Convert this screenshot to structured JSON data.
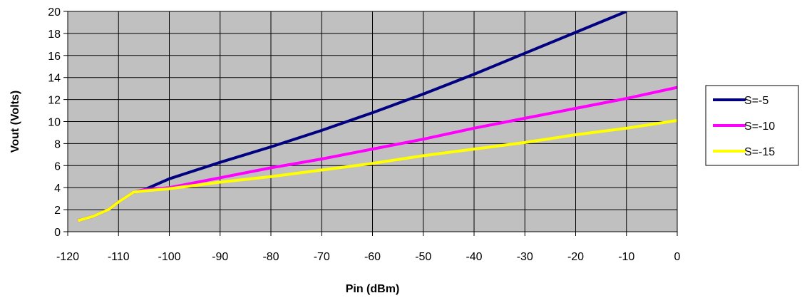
{
  "chart_data": {
    "type": "line",
    "title": "",
    "xlabel": "Pin (dBm)",
    "ylabel": "Vout (Volts)",
    "xlim": [
      -120,
      0
    ],
    "ylim": [
      0,
      20
    ],
    "xticks": [
      -120,
      -110,
      -100,
      -90,
      -80,
      -70,
      -60,
      -50,
      -40,
      -30,
      -20,
      -10,
      0
    ],
    "yticks": [
      0,
      2,
      4,
      6,
      8,
      10,
      12,
      14,
      16,
      18,
      20
    ],
    "grid": true,
    "plot_background": "#c0c0c0",
    "legend_position": "right",
    "series": [
      {
        "name": "S=-5",
        "color": "#000080",
        "points": [
          [
            -118,
            1.0
          ],
          [
            -115,
            1.4
          ],
          [
            -112,
            2.0
          ],
          [
            -110,
            2.7
          ],
          [
            -107,
            3.6
          ],
          [
            -105,
            3.8
          ],
          [
            -100,
            4.8
          ],
          [
            -90,
            6.3
          ],
          [
            -80,
            7.7
          ],
          [
            -70,
            9.2
          ],
          [
            -60,
            10.8
          ],
          [
            -50,
            12.5
          ],
          [
            -40,
            14.3
          ],
          [
            -30,
            16.2
          ],
          [
            -20,
            18.1
          ],
          [
            -10,
            20.0
          ]
        ]
      },
      {
        "name": "S=-10",
        "color": "#ff00ff",
        "points": [
          [
            -118,
            1.0
          ],
          [
            -115,
            1.4
          ],
          [
            -112,
            2.0
          ],
          [
            -110,
            2.7
          ],
          [
            -107,
            3.6
          ],
          [
            -105,
            3.8
          ],
          [
            -100,
            4.0
          ],
          [
            -90,
            4.9
          ],
          [
            -80,
            5.8
          ],
          [
            -70,
            6.6
          ],
          [
            -60,
            7.5
          ],
          [
            -50,
            8.4
          ],
          [
            -40,
            9.4
          ],
          [
            -30,
            10.3
          ],
          [
            -20,
            11.2
          ],
          [
            -10,
            12.1
          ],
          [
            0,
            13.1
          ]
        ]
      },
      {
        "name": "S=-15",
        "color": "#ffff00",
        "points": [
          [
            -118,
            1.0
          ],
          [
            -115,
            1.4
          ],
          [
            -112,
            2.0
          ],
          [
            -110,
            2.7
          ],
          [
            -107,
            3.6
          ],
          [
            -105,
            3.7
          ],
          [
            -100,
            3.9
          ],
          [
            -90,
            4.5
          ],
          [
            -80,
            5.0
          ],
          [
            -70,
            5.6
          ],
          [
            -60,
            6.2
          ],
          [
            -50,
            6.9
          ],
          [
            -40,
            7.5
          ],
          [
            -30,
            8.1
          ],
          [
            -20,
            8.8
          ],
          [
            -10,
            9.4
          ],
          [
            0,
            10.1
          ]
        ]
      }
    ]
  }
}
